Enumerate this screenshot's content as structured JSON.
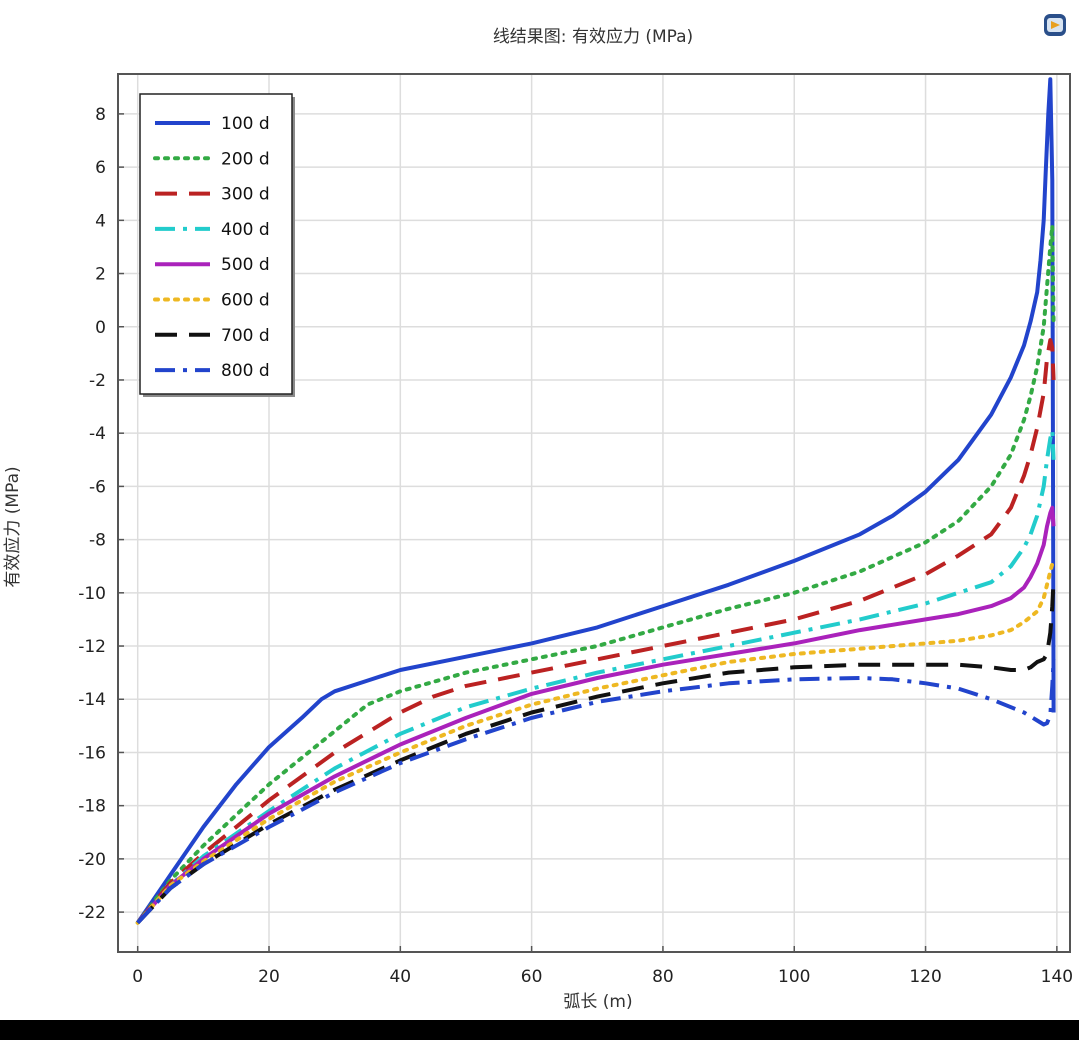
{
  "header": {
    "title": "线结果图: 有效应力 (MPa)",
    "icon": "comsol-logo-icon"
  },
  "chart_data": {
    "type": "line",
    "title": "线结果图: 有效应力 (MPa)",
    "xlabel": "弧长 (m)",
    "ylabel": "有效应力 (MPa)",
    "xlim": [
      -3,
      142
    ],
    "ylim": [
      -23.5,
      9.5
    ],
    "xticks": [
      0,
      20,
      40,
      60,
      80,
      100,
      120,
      140
    ],
    "yticks": [
      8,
      6,
      4,
      2,
      0,
      -2,
      -4,
      -6,
      -8,
      -10,
      -12,
      -14,
      -16,
      -18,
      -20,
      -22
    ],
    "grid": true,
    "legend_position": "top-left",
    "series": [
      {
        "name": "100 d",
        "color": "#2244cc",
        "dash": "solid",
        "x": [
          0,
          5,
          10,
          15,
          20,
          25,
          28,
          30,
          35,
          40,
          50,
          60,
          70,
          80,
          90,
          100,
          110,
          115,
          120,
          125,
          130,
          133,
          135,
          136,
          137,
          137.5,
          138,
          138.3,
          138.7,
          139,
          139.3,
          139.5
        ],
        "y": [
          -22.4,
          -20.6,
          -18.8,
          -17.2,
          -15.8,
          -14.7,
          -14.0,
          -13.7,
          -13.3,
          -12.9,
          -12.4,
          -11.9,
          -11.3,
          -10.5,
          -9.7,
          -8.8,
          -7.8,
          -7.1,
          -6.2,
          -5.0,
          -3.3,
          -1.9,
          -0.7,
          0.2,
          1.3,
          2.5,
          4.0,
          5.8,
          8.0,
          9.3,
          5.5,
          -14.5
        ]
      },
      {
        "name": "200 d",
        "color": "#33aa44",
        "dash": "dotted",
        "x": [
          0,
          5,
          10,
          20,
          30,
          35,
          40,
          50,
          60,
          70,
          80,
          90,
          100,
          110,
          120,
          125,
          130,
          133,
          135,
          136,
          137,
          138,
          138.5,
          139,
          139.3,
          139.5
        ],
        "y": [
          -22.4,
          -20.8,
          -19.5,
          -17.2,
          -15.2,
          -14.2,
          -13.7,
          -13.0,
          -12.5,
          -12.0,
          -11.3,
          -10.6,
          -10.0,
          -9.2,
          -8.1,
          -7.3,
          -6.0,
          -4.8,
          -3.5,
          -2.6,
          -1.5,
          0.0,
          1.5,
          3.0,
          3.8,
          0.0
        ]
      },
      {
        "name": "300 d",
        "color": "#bb2222",
        "dash": "dashed",
        "x": [
          0,
          5,
          10,
          20,
          30,
          40,
          45,
          50,
          60,
          70,
          80,
          90,
          100,
          110,
          120,
          125,
          130,
          133,
          135,
          136,
          137,
          138,
          138.5,
          139,
          139.3,
          139.5
        ],
        "y": [
          -22.4,
          -20.9,
          -19.8,
          -17.8,
          -16.0,
          -14.5,
          -13.9,
          -13.5,
          -13.0,
          -12.5,
          -12.0,
          -11.5,
          -11.0,
          -10.3,
          -9.3,
          -8.6,
          -7.8,
          -6.8,
          -5.6,
          -4.8,
          -3.8,
          -2.5,
          -1.2,
          -0.5,
          -0.8,
          -2.0
        ]
      },
      {
        "name": "400 d",
        "color": "#22cccc",
        "dash": "dashdot",
        "x": [
          0,
          5,
          10,
          20,
          30,
          40,
          50,
          60,
          70,
          80,
          90,
          100,
          110,
          120,
          125,
          130,
          133,
          135,
          136,
          137,
          138,
          138.5,
          139,
          139.3,
          139.5
        ],
        "y": [
          -22.4,
          -21.0,
          -19.9,
          -18.2,
          -16.6,
          -15.3,
          -14.3,
          -13.6,
          -13.0,
          -12.5,
          -12.0,
          -11.5,
          -11.0,
          -10.4,
          -10.0,
          -9.6,
          -9.0,
          -8.3,
          -7.8,
          -7.1,
          -6.0,
          -5.0,
          -4.2,
          -3.9,
          -5.0
        ]
      },
      {
        "name": "500 d",
        "color": "#aa22bb",
        "dash": "solid",
        "x": [
          0,
          5,
          10,
          20,
          30,
          40,
          50,
          60,
          70,
          80,
          90,
          100,
          110,
          120,
          125,
          130,
          133,
          135,
          136,
          137,
          138,
          138.5,
          139,
          139.3,
          139.5
        ],
        "y": [
          -22.4,
          -21.0,
          -20.0,
          -18.3,
          -16.9,
          -15.7,
          -14.7,
          -13.8,
          -13.2,
          -12.7,
          -12.3,
          -11.9,
          -11.4,
          -11.0,
          -10.8,
          -10.5,
          -10.2,
          -9.8,
          -9.4,
          -8.9,
          -8.2,
          -7.5,
          -7.0,
          -6.8,
          -7.5
        ]
      },
      {
        "name": "600 d",
        "color": "#eeb822",
        "dash": "dotted",
        "x": [
          0,
          5,
          10,
          20,
          30,
          40,
          50,
          60,
          70,
          80,
          90,
          100,
          110,
          120,
          125,
          130,
          133,
          135,
          136,
          137,
          138,
          138.5,
          139,
          139.3,
          139.5
        ],
        "y": [
          -22.4,
          -21.0,
          -20.1,
          -18.5,
          -17.1,
          -16.0,
          -15.0,
          -14.2,
          -13.6,
          -13.1,
          -12.6,
          -12.3,
          -12.1,
          -11.9,
          -11.8,
          -11.6,
          -11.4,
          -11.1,
          -10.9,
          -10.7,
          -10.2,
          -9.7,
          -9.2,
          -8.9,
          -9.0
        ]
      },
      {
        "name": "700 d",
        "color": "#111111",
        "dash": "dashed",
        "x": [
          0,
          5,
          10,
          20,
          30,
          40,
          50,
          60,
          70,
          80,
          90,
          100,
          110,
          120,
          125,
          130,
          133,
          135,
          136,
          137,
          138,
          138.5,
          139,
          139.3,
          139.5
        ],
        "y": [
          -22.4,
          -21.1,
          -20.2,
          -18.7,
          -17.4,
          -16.3,
          -15.3,
          -14.5,
          -13.9,
          -13.4,
          -13.0,
          -12.8,
          -12.7,
          -12.7,
          -12.7,
          -12.8,
          -12.9,
          -12.9,
          -12.8,
          -12.6,
          -12.5,
          -12.3,
          -11.5,
          -10.5,
          -9.5
        ]
      },
      {
        "name": "800 d",
        "color": "#2244cc",
        "dash": "dashdot",
        "x": [
          0,
          5,
          10,
          20,
          30,
          40,
          50,
          60,
          70,
          80,
          90,
          100,
          110,
          115,
          120,
          125,
          130,
          133,
          135,
          137,
          138,
          138.5,
          139,
          139.3,
          139.5
        ],
        "y": [
          -22.4,
          -21.1,
          -20.2,
          -18.8,
          -17.5,
          -16.4,
          -15.5,
          -14.7,
          -14.1,
          -13.7,
          -13.4,
          -13.25,
          -13.2,
          -13.25,
          -13.4,
          -13.6,
          -14.0,
          -14.3,
          -14.5,
          -14.8,
          -14.95,
          -14.9,
          -14.6,
          -13.5,
          -12.5
        ]
      }
    ]
  }
}
